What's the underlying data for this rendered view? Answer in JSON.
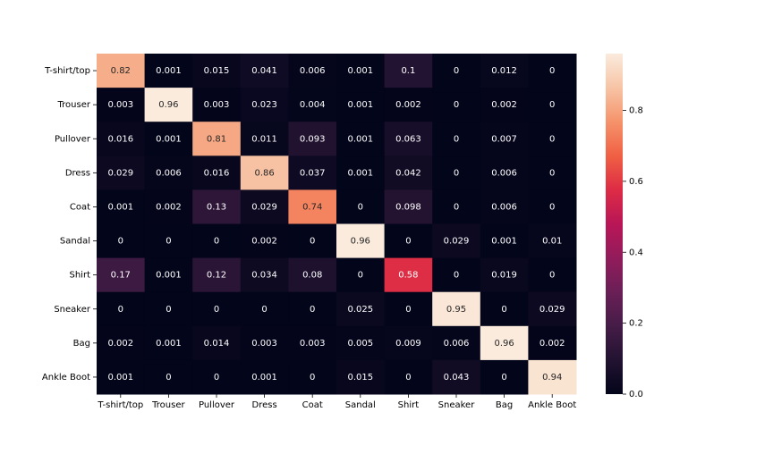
{
  "chart_data": {
    "type": "heatmap",
    "categories": [
      "T-shirt/top",
      "Trouser",
      "Pullover",
      "Dress",
      "Coat",
      "Sandal",
      "Shirt",
      "Sneaker",
      "Bag",
      "Ankle Boot"
    ],
    "values": [
      [
        0.82,
        0.001,
        0.015,
        0.041,
        0.006,
        0.001,
        0.1,
        0,
        0.012,
        0
      ],
      [
        0.003,
        0.96,
        0.003,
        0.023,
        0.004,
        0.001,
        0.002,
        0,
        0.002,
        0
      ],
      [
        0.016,
        0.001,
        0.81,
        0.011,
        0.093,
        0.001,
        0.063,
        0,
        0.007,
        0
      ],
      [
        0.029,
        0.006,
        0.016,
        0.86,
        0.037,
        0.001,
        0.042,
        0,
        0.006,
        0
      ],
      [
        0.001,
        0.002,
        0.13,
        0.029,
        0.74,
        0,
        0.098,
        0,
        0.006,
        0
      ],
      [
        0,
        0,
        0,
        0.002,
        0,
        0.96,
        0,
        0.029,
        0.001,
        0.01
      ],
      [
        0.17,
        0.001,
        0.12,
        0.034,
        0.08,
        0,
        0.58,
        0,
        0.019,
        0
      ],
      [
        0,
        0,
        0,
        0,
        0,
        0.025,
        0,
        0.95,
        0,
        0.029
      ],
      [
        0.002,
        0.001,
        0.014,
        0.003,
        0.003,
        0.005,
        0.009,
        0.006,
        0.96,
        0.002
      ],
      [
        0.001,
        0,
        0,
        0.001,
        0,
        0.015,
        0,
        0.043,
        0,
        0.94
      ]
    ],
    "colormap": [
      "#03051a",
      "#221331",
      "#451c47",
      "#6a1f56",
      "#921c5b",
      "#b91657",
      "#dd2c45",
      "#f06043",
      "#f5936b",
      "#f7c4a5",
      "#faebdd"
    ],
    "clim": [
      0,
      0.96
    ],
    "cticks": [
      {
        "value": 0,
        "label": "0.0"
      },
      0.2,
      0.4,
      0.6,
      0.8
    ]
  }
}
